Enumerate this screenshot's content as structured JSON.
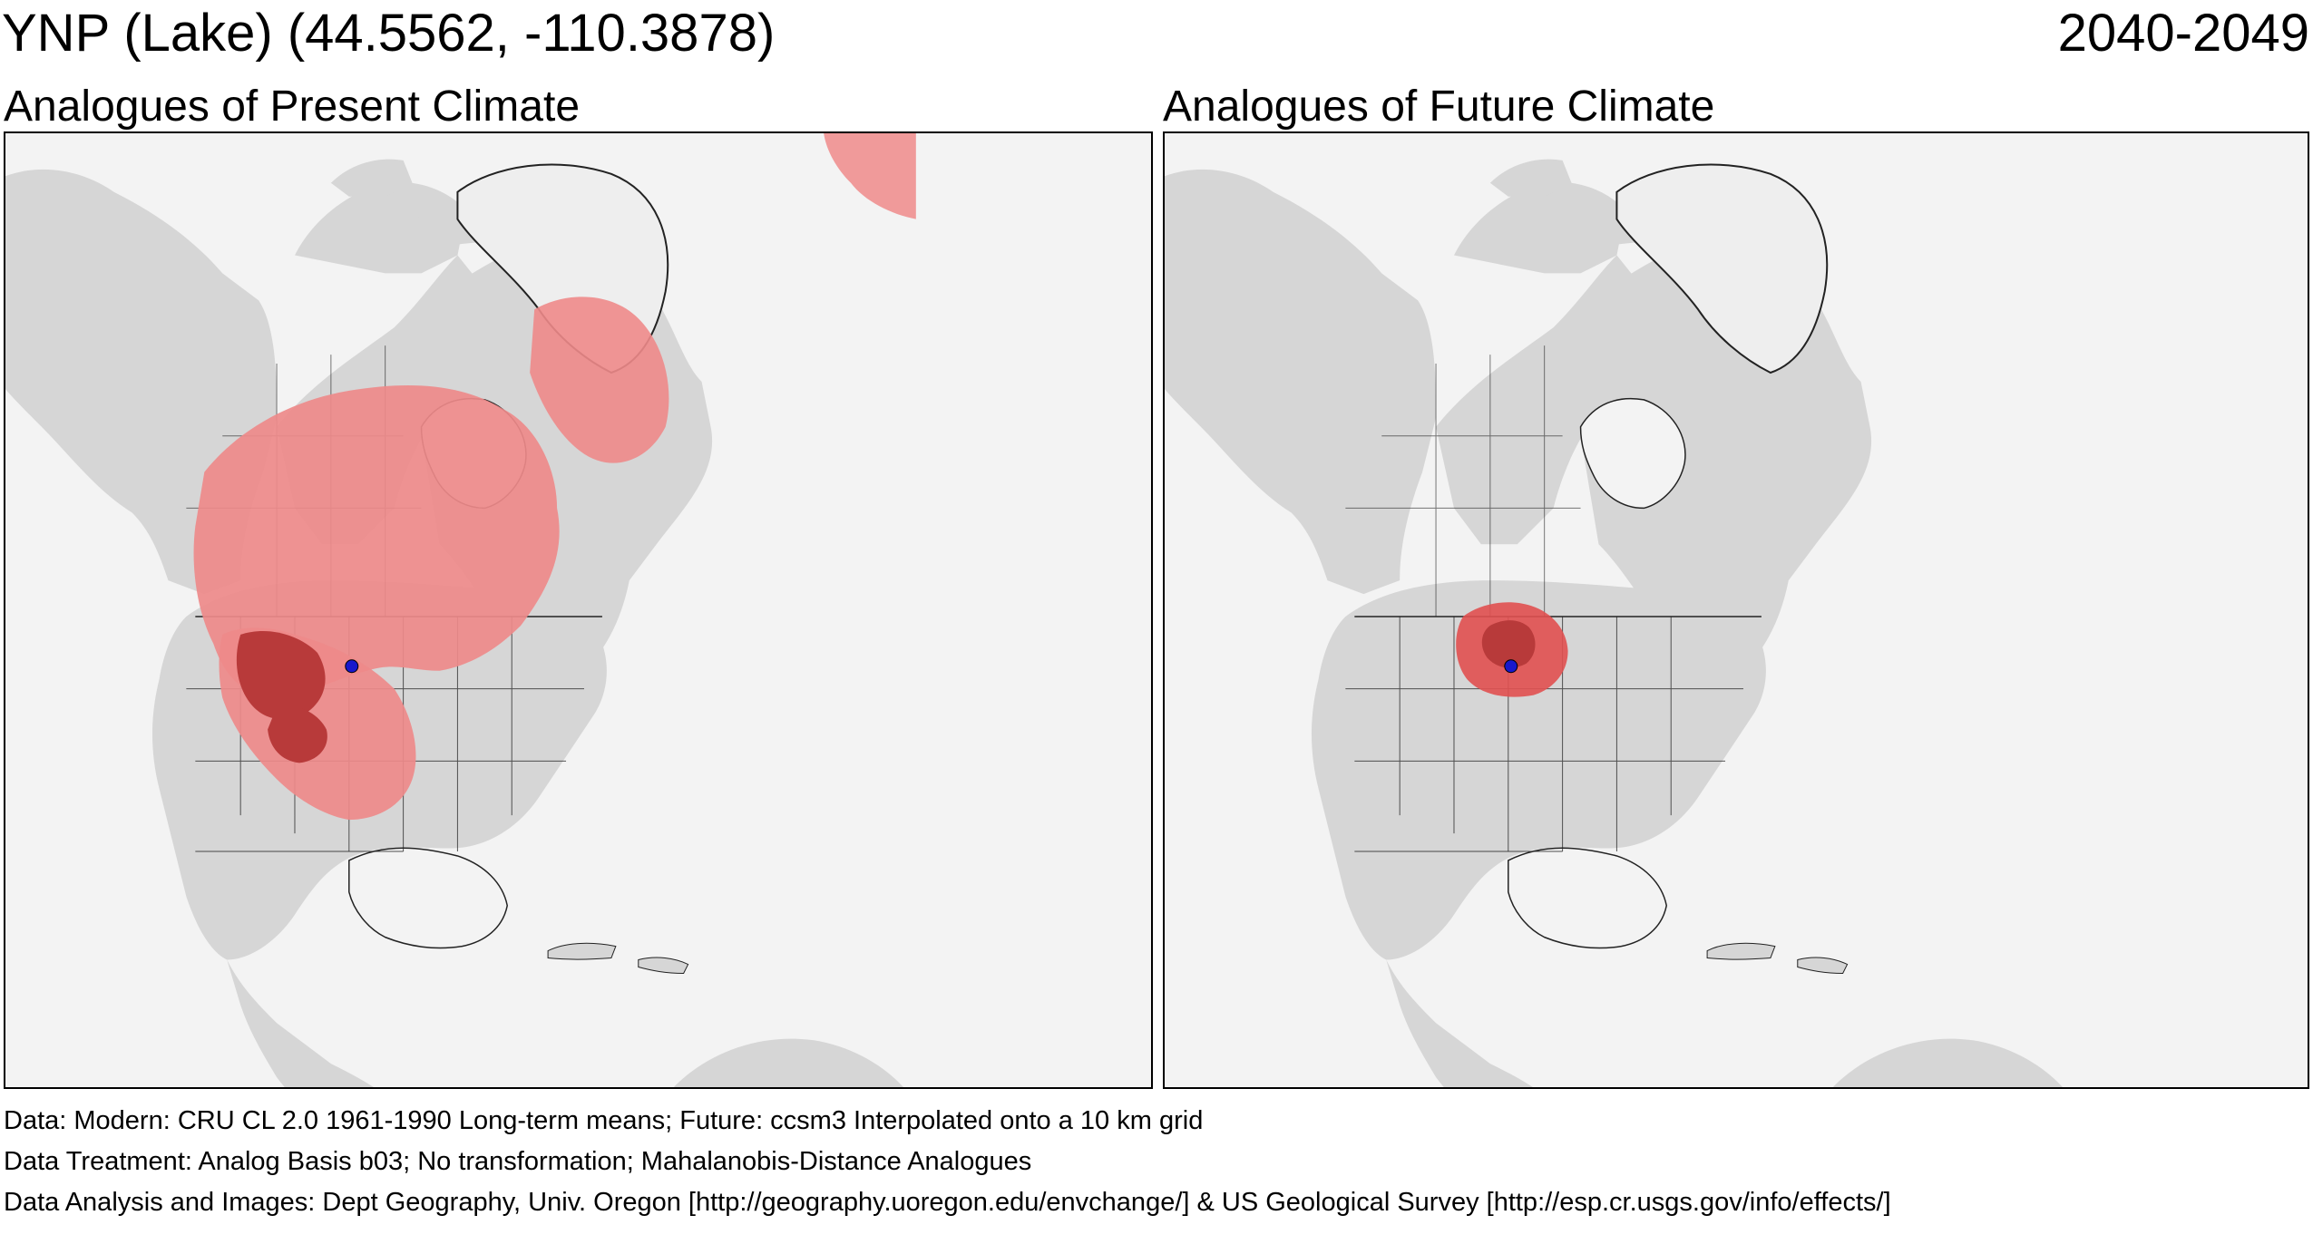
{
  "header": {
    "site": "YNP (Lake)  (44.5562, -110.3878)",
    "period": "2040-2049"
  },
  "panels": [
    {
      "title": "Analogues of Present Climate",
      "analogue_extent": "broad"
    },
    {
      "title": "Analogues of Future Climate",
      "analogue_extent": "local"
    }
  ],
  "colors": {
    "land": "#d6d6d6",
    "ocean": "#f3f3f3",
    "ice": "#eeeeee",
    "analogue_light": "#ee8a8a",
    "analogue_dark": "#b83a3a",
    "analogue_future": "#e15050",
    "site_marker": "#1818cc",
    "boundary": "#222222"
  },
  "footer": {
    "data": "Data:  Modern: CRU CL 2.0 1961-1990 Long-term means; Future: ccsm3 Interpolated onto a 10 km grid",
    "treatment": "Data Treatment:  Analog Basis b03; No transformation; Mahalanobis-Distance Analogues",
    "analysis": "Data Analysis and Images:  Dept Geography, Univ. Oregon [http://geography.uoregon.edu/envchange/] & US Geological Survey [http://esp.cr.usgs.gov/info/effects/]"
  }
}
